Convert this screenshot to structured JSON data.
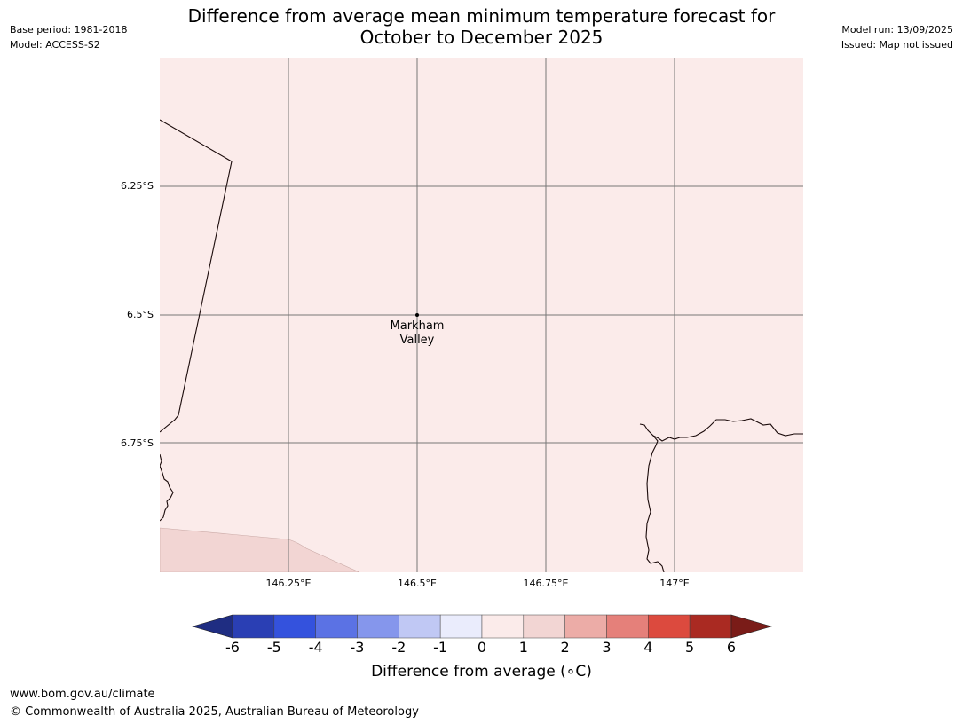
{
  "header": {
    "title_line1": "Difference from average mean minimum temperature forecast for",
    "title_line2": "October to December 2025",
    "base_period": "Base period: 1981-2018",
    "model": "Model: ACCESS-S2",
    "model_run": "Model run: 13/09/2025",
    "issued": "Issued: Map not issued"
  },
  "map": {
    "lat_labels": [
      "6.25°S",
      "6.5°S",
      "6.75°S"
    ],
    "lon_labels": [
      "146.25°E",
      "146.5°E",
      "146.75°E",
      "147°E"
    ],
    "place": {
      "line1": "Markham",
      "line2": "Valley"
    },
    "colors": {
      "bin_0_1": "#fbebea",
      "bin_1_2": "#f2d5d3",
      "coastline": "#1a0a0a",
      "gridline": "#777777"
    }
  },
  "colorbar": {
    "ticks": [
      "-6",
      "-5",
      "-4",
      "-3",
      "-2",
      "-1",
      "0",
      "1",
      "2",
      "3",
      "4",
      "5",
      "6"
    ],
    "colors": [
      "#1f2d82",
      "#2a3fb4",
      "#3452dd",
      "#5b72e4",
      "#8596ec",
      "#c0c8f4",
      "#eaecfc",
      "#fbebea",
      "#f2d5d3",
      "#ecaca7",
      "#e5807a",
      "#dc4a3e",
      "#aa2a22",
      "#7a1c18"
    ],
    "label": "Difference from average (∘C)"
  },
  "footer": {
    "url": "www.bom.gov.au/climate",
    "copyright": "© Commonwealth of Australia 2025, Australian Bureau of Meteorology"
  }
}
